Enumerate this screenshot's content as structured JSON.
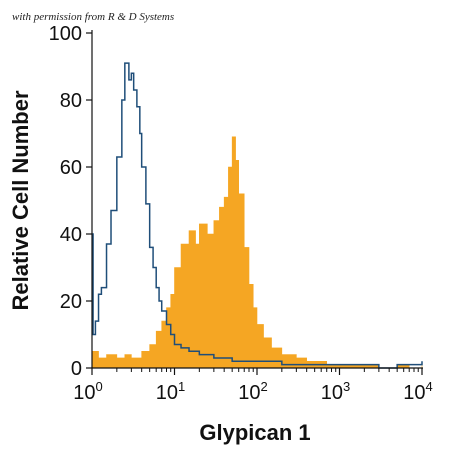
{
  "credit": "with permission from R & D Systems",
  "colors": {
    "filled": "#f5a623",
    "outline": "#1f4e79",
    "axis": "#111111"
  },
  "chart_data": {
    "type": "area",
    "title": "",
    "xlabel": "Glypican 1",
    "ylabel": "Relative Cell Number",
    "xscale": "log",
    "xlim": [
      1,
      10000
    ],
    "ylim": [
      0,
      100
    ],
    "x_ticks": [
      {
        "value": 1,
        "base": "10",
        "exp": "0"
      },
      {
        "value": 10,
        "base": "10",
        "exp": "1"
      },
      {
        "value": 100,
        "base": "10",
        "exp": "2"
      },
      {
        "value": 1000,
        "base": "10",
        "exp": "3"
      },
      {
        "value": 10000,
        "base": "10",
        "exp": "4"
      }
    ],
    "y_ticks": [
      0,
      20,
      40,
      60,
      80,
      100
    ],
    "grid": false,
    "series": [
      {
        "style": "filled",
        "color": "#f5a623",
        "x": [
          1,
          1.2,
          1.5,
          2,
          2.5,
          3,
          4,
          5,
          6,
          7,
          8,
          9,
          10,
          12,
          15,
          18,
          20,
          25,
          30,
          35,
          40,
          45,
          50,
          55,
          60,
          70,
          80,
          90,
          100,
          120,
          150,
          200,
          300,
          400,
          500,
          700,
          1000,
          2000,
          3000,
          5000,
          7000,
          10000
        ],
        "y": [
          5,
          3,
          4,
          3,
          4,
          3,
          5,
          7,
          11,
          14,
          18,
          22,
          30,
          37,
          41,
          37,
          43,
          40,
          44,
          48,
          51,
          60,
          69,
          62,
          52,
          36,
          25,
          18,
          13,
          9,
          6,
          4,
          3,
          2,
          2,
          1,
          1,
          1,
          0,
          1,
          0,
          1
        ]
      },
      {
        "style": "outline",
        "color": "#1f4e79",
        "x": [
          1,
          1.03,
          1.1,
          1.2,
          1.3,
          1.5,
          1.7,
          2,
          2.3,
          2.5,
          2.8,
          3,
          3.2,
          3.5,
          3.8,
          4,
          4.5,
          5,
          5.5,
          6,
          6.5,
          7,
          8,
          9,
          10,
          12,
          15,
          20,
          30,
          50,
          100,
          200,
          500,
          1000,
          3000,
          5000,
          7000,
          10000
        ],
        "y": [
          40,
          10,
          14,
          22,
          24,
          37,
          47,
          63,
          80,
          91,
          86,
          88,
          83,
          78,
          70,
          60,
          49,
          36,
          30,
          24,
          20,
          17,
          13,
          10,
          7,
          6,
          5,
          4,
          3,
          2,
          2,
          1,
          1,
          1,
          0,
          1,
          1,
          2
        ]
      }
    ]
  }
}
